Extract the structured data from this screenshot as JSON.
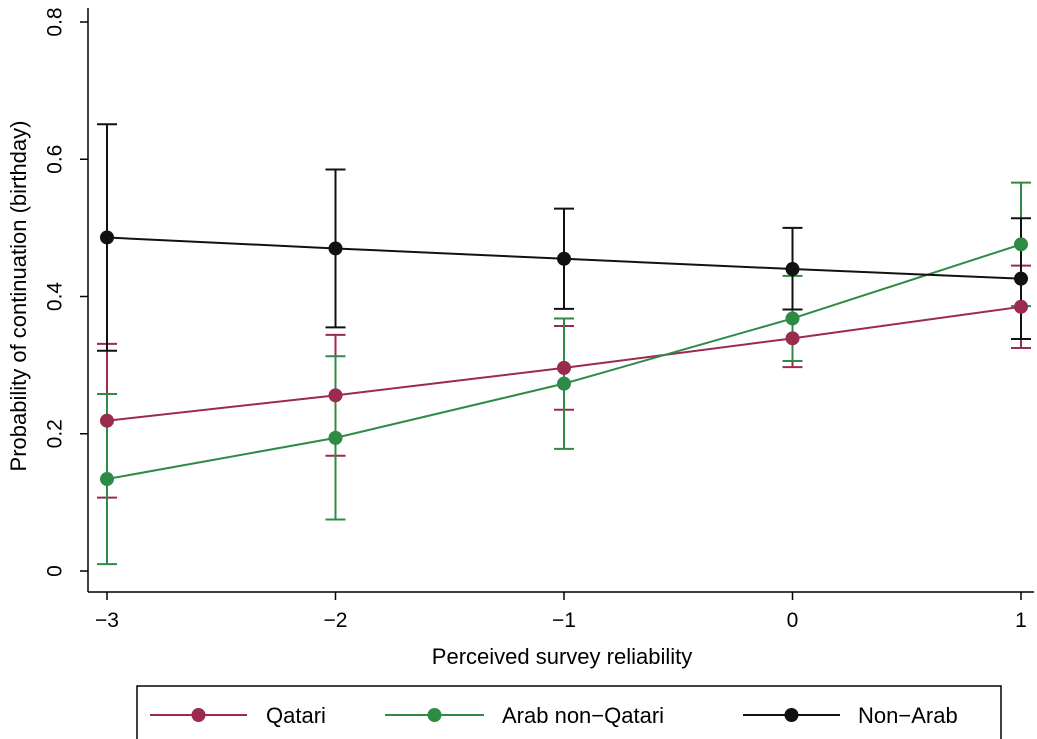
{
  "chart_data": {
    "type": "line",
    "title": "",
    "xlabel": "Perceived survey reliability",
    "ylabel": "Probability of continuation (birthday)",
    "x": [
      -3,
      -2,
      -1,
      0,
      1
    ],
    "xticks": [
      -3,
      -2,
      -1,
      0,
      1
    ],
    "xtick_labels": [
      "−3",
      "−2",
      "−1",
      "0",
      "1"
    ],
    "yticks": [
      0,
      0.2,
      0.4,
      0.6,
      0.8
    ],
    "ytick_labels": [
      "0",
      "0.2",
      "0.4",
      "0.6",
      "0.8"
    ],
    "xlim": [
      -3,
      1
    ],
    "ylim": [
      0,
      0.8
    ],
    "grid": false,
    "legend_position": "bottom",
    "series": [
      {
        "name": "Qatari",
        "color": "#9b2a4f",
        "values": [
          0.219,
          0.256,
          0.296,
          0.339,
          0.385
        ],
        "ci_low": [
          0.107,
          0.168,
          0.235,
          0.297,
          0.325
        ],
        "ci_high": [
          0.331,
          0.344,
          0.357,
          0.381,
          0.445
        ]
      },
      {
        "name": "Arab non−Qatari",
        "color": "#2e8b46",
        "values": [
          0.134,
          0.194,
          0.273,
          0.368,
          0.476
        ],
        "ci_low": [
          0.01,
          0.075,
          0.178,
          0.306,
          0.386
        ],
        "ci_high": [
          0.258,
          0.313,
          0.368,
          0.43,
          0.566
        ]
      },
      {
        "name": "Non−Arab",
        "color": "#111111",
        "values": [
          0.486,
          0.47,
          0.455,
          0.44,
          0.426
        ],
        "ci_low": [
          0.321,
          0.355,
          0.382,
          0.381,
          0.338
        ],
        "ci_high": [
          0.651,
          0.585,
          0.528,
          0.5,
          0.514
        ]
      }
    ]
  }
}
